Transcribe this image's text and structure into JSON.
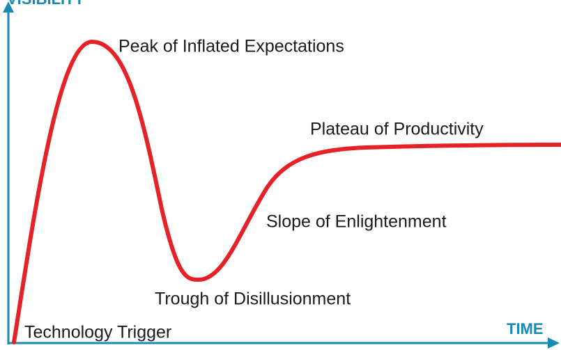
{
  "axes": {
    "y_label": "VISIBILITY",
    "x_label": "TIME"
  },
  "phases": [
    {
      "label": "Technology Trigger"
    },
    {
      "label": "Peak of Inflated Expectations"
    },
    {
      "label": "Trough of Disillusionment"
    },
    {
      "label": "Slope of Enlightenment"
    },
    {
      "label": "Plateau of Productivity"
    }
  ]
}
